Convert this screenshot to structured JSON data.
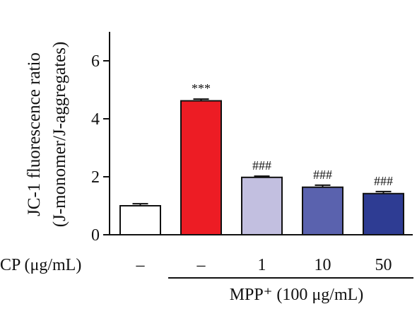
{
  "chart_data": {
    "type": "bar",
    "ylabel_lines": [
      "JC-1 fluorescence ratio",
      "(J-monomer/J-aggregates)"
    ],
    "ylim": [
      0,
      7
    ],
    "yticks": [
      0,
      2,
      4,
      6
    ],
    "bars": [
      {
        "cp": "–",
        "value": 1.0,
        "error": 0.07,
        "annotation": "",
        "color": "#ffffff"
      },
      {
        "cp": "–",
        "value": 4.62,
        "error": 0.06,
        "annotation": "***",
        "color": "#ed1c24"
      },
      {
        "cp": "1",
        "value": 1.98,
        "error": 0.04,
        "annotation": "###",
        "color": "#c2bfe0"
      },
      {
        "cp": "10",
        "value": 1.64,
        "error": 0.07,
        "annotation": "###",
        "color": "#5a62ae"
      },
      {
        "cp": "50",
        "value": 1.42,
        "error": 0.07,
        "annotation": "###",
        "color": "#2e3c93"
      }
    ],
    "cp_row_label": "CP (μg/mL)",
    "mpp_group_label": "MPP⁺ (100 μg/mL)",
    "mpp_group_bar_indices": [
      1,
      2,
      3,
      4
    ]
  }
}
